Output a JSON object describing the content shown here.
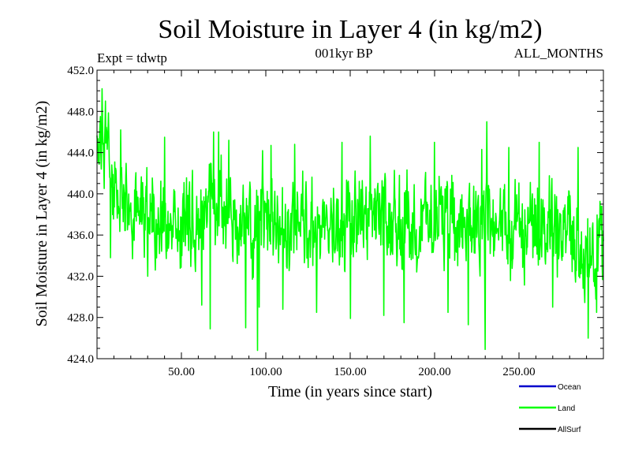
{
  "chart_data": {
    "type": "line",
    "title": "Soil Moisture in Layer 4 (in kg/m2)",
    "subtitle": "001kyr BP",
    "left_note": "Expt = tdwtp",
    "right_note": "ALL_MONTHS",
    "xlabel": "Time (in years since start)",
    "ylabel": "Soil Moisture in Layer 4 (in kg/m2)",
    "xlim": [
      0,
      300
    ],
    "ylim": [
      424.0,
      452.0
    ],
    "x_ticks": [
      50,
      100,
      150,
      200,
      250
    ],
    "x_tick_labels": [
      "50.00",
      "100.00",
      "150.00",
      "200.00",
      "250.00"
    ],
    "y_ticks": [
      424,
      428,
      432,
      436,
      440,
      444,
      448,
      452
    ],
    "y_tick_labels": [
      "424.0",
      "428.0",
      "432.0",
      "436.0",
      "440.0",
      "444.0",
      "448.0",
      "452.0"
    ],
    "grid": false,
    "legend_position": "bottom-right",
    "legend": [
      {
        "name": "Ocean",
        "color": "#0000cc"
      },
      {
        "name": "Land",
        "color": "#00ff00"
      },
      {
        "name": "AllSurf",
        "color": "#000000"
      }
    ],
    "series": [
      {
        "name": "Land",
        "color": "#00ff00",
        "anchors_x": [
          0,
          2,
          4,
          6,
          8,
          10,
          15,
          20,
          25,
          30,
          35,
          40,
          45,
          50,
          55,
          60,
          65,
          68,
          70,
          75,
          80,
          85,
          90,
          95,
          100,
          110,
          120,
          130,
          140,
          150,
          160,
          170,
          180,
          190,
          200,
          210,
          220,
          230,
          232,
          240,
          250,
          260,
          270,
          280,
          285,
          290,
          295,
          300
        ],
        "anchors_y": [
          444,
          445.5,
          444.5,
          443.5,
          442,
          440,
          439,
          438,
          438.5,
          438,
          437.5,
          437,
          437,
          437,
          437.5,
          437,
          438,
          440,
          440.5,
          438,
          437.5,
          437,
          436.5,
          436.5,
          437,
          437,
          437,
          437,
          437,
          436.5,
          437,
          437.5,
          437,
          437,
          437.5,
          437,
          437,
          437,
          438,
          437,
          436.5,
          437,
          436.5,
          436,
          435,
          434,
          434.5,
          436
        ],
        "amplitude": 3.0,
        "spike_points": [
          [
            3,
            450.2
          ],
          [
            2,
            447.5
          ],
          [
            5,
            449.0
          ],
          [
            8,
            433.8
          ],
          [
            14,
            446.2
          ],
          [
            30,
            432.0
          ],
          [
            40,
            445.5
          ],
          [
            62,
            429.2
          ],
          [
            67,
            426.9
          ],
          [
            69,
            446.0
          ],
          [
            72,
            446.0
          ],
          [
            78,
            445.2
          ],
          [
            88,
            427.0
          ],
          [
            95,
            424.8
          ],
          [
            96,
            429.0
          ],
          [
            98,
            444.2
          ],
          [
            103,
            444.7
          ],
          [
            110,
            428.8
          ],
          [
            117,
            444.8
          ],
          [
            130,
            428.5
          ],
          [
            145,
            445.0
          ],
          [
            150,
            427.9
          ],
          [
            162,
            445.6
          ],
          [
            170,
            428.2
          ],
          [
            182,
            427.5
          ],
          [
            200,
            445.0
          ],
          [
            208,
            428.5
          ],
          [
            220,
            427.3
          ],
          [
            228,
            444.3
          ],
          [
            230,
            424.9
          ],
          [
            231,
            447.0
          ],
          [
            244,
            444.5
          ],
          [
            262,
            445.0
          ],
          [
            270,
            429.0
          ],
          [
            285,
            444.5
          ],
          [
            291,
            426.0
          ],
          [
            296,
            428.5
          ],
          [
            299,
            438.8
          ]
        ],
        "n_samples": 1200
      }
    ]
  }
}
